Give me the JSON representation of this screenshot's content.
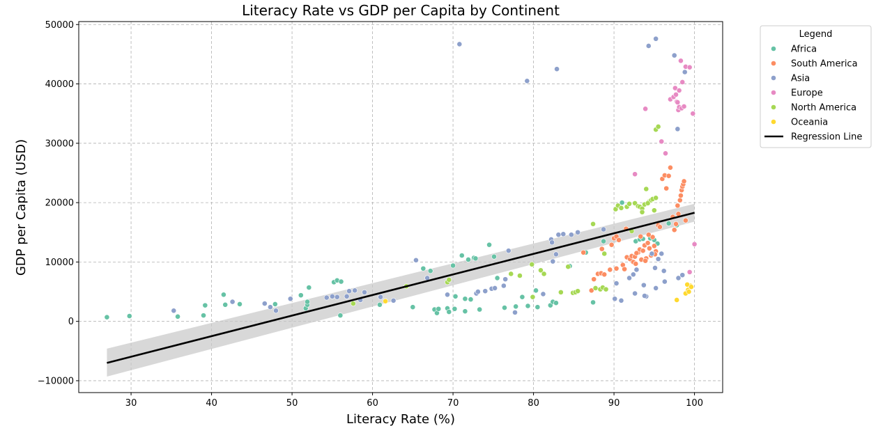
{
  "chart_data": {
    "type": "scatter",
    "title": "Literacy Rate vs GDP per Capita by Continent",
    "xlabel": "Literacy Rate (%)",
    "ylabel": "GDP per Capita (USD)",
    "xlim": [
      23.5,
      103.5
    ],
    "ylim": [
      -12000,
      50500
    ],
    "xticks": [
      30,
      40,
      50,
      60,
      70,
      80,
      90,
      100
    ],
    "yticks": [
      -10000,
      0,
      10000,
      20000,
      30000,
      40000,
      50000
    ],
    "grid": true,
    "legend": {
      "title": "Legend",
      "placement": "outside-right-top",
      "regression_label": "Regression Line"
    },
    "regression": {
      "x": [
        27,
        100
      ],
      "y": [
        -7000,
        18300
      ],
      "ci_lower": [
        -9300,
        16800
      ],
      "ci_upper": [
        -4600,
        19800
      ],
      "color": "#000000"
    },
    "series": [
      {
        "name": "Africa",
        "color": "#66c2a5",
        "points": [
          [
            27,
            700
          ],
          [
            29.8,
            900
          ],
          [
            35.8,
            800
          ],
          [
            39,
            1000
          ],
          [
            39.2,
            2700
          ],
          [
            41.5,
            4500
          ],
          [
            41.7,
            2800
          ],
          [
            43.5,
            2900
          ],
          [
            47.9,
            2900
          ],
          [
            51.1,
            4400
          ],
          [
            51.7,
            2200
          ],
          [
            51.9,
            2800
          ],
          [
            51.9,
            3300
          ],
          [
            52.1,
            5700
          ],
          [
            55.2,
            6600
          ],
          [
            55.6,
            6900
          ],
          [
            56,
            1000
          ],
          [
            56.1,
            6700
          ],
          [
            60.9,
            2800
          ],
          [
            65,
            2400
          ],
          [
            66.3,
            8900
          ],
          [
            67.2,
            8500
          ],
          [
            67.7,
            2000
          ],
          [
            68,
            1400
          ],
          [
            68.2,
            2100
          ],
          [
            69.3,
            2200
          ],
          [
            69.5,
            1600
          ],
          [
            70,
            9400
          ],
          [
            70.2,
            2100
          ],
          [
            70.3,
            4200
          ],
          [
            71.1,
            11100
          ],
          [
            71.5,
            1700
          ],
          [
            71.5,
            3800
          ],
          [
            71.9,
            10400
          ],
          [
            72.2,
            3700
          ],
          [
            72.6,
            10700
          ],
          [
            72.8,
            10600
          ],
          [
            73.3,
            2000
          ],
          [
            74.5,
            12900
          ],
          [
            75.1,
            10900
          ],
          [
            75.5,
            7300
          ],
          [
            76.4,
            2300
          ],
          [
            77.8,
            2500
          ],
          [
            78.6,
            4100
          ],
          [
            79.3,
            2600
          ],
          [
            80.3,
            5200
          ],
          [
            80.5,
            2400
          ],
          [
            82.1,
            2700
          ],
          [
            82.4,
            3300
          ],
          [
            82.8,
            3100
          ],
          [
            84.5,
            9300
          ],
          [
            86.5,
            11600
          ],
          [
            87.4,
            3200
          ],
          [
            88.7,
            13500
          ],
          [
            91,
            20000
          ],
          [
            92.7,
            13500
          ],
          [
            93.2,
            13800
          ],
          [
            93.6,
            13900
          ],
          [
            94.5,
            14000
          ],
          [
            95,
            13700
          ],
          [
            95.4,
            13100
          ],
          [
            96.8,
            16500
          ],
          [
            97.8,
            16200
          ]
        ]
      },
      {
        "name": "South America",
        "color": "#fc8d62",
        "points": [
          [
            86.2,
            11600
          ],
          [
            87.2,
            5200
          ],
          [
            87.5,
            7100
          ],
          [
            88,
            8000
          ],
          [
            88.4,
            8100
          ],
          [
            88.5,
            12200
          ],
          [
            88.8,
            7900
          ],
          [
            89.5,
            8700
          ],
          [
            89.7,
            12900
          ],
          [
            90,
            14000
          ],
          [
            90.3,
            14300
          ],
          [
            90.3,
            8900
          ],
          [
            90.6,
            13700
          ],
          [
            91.1,
            9500
          ],
          [
            91.3,
            8800
          ],
          [
            91.5,
            15600
          ],
          [
            91.6,
            10800
          ],
          [
            92,
            10500
          ],
          [
            92.2,
            11000
          ],
          [
            92.4,
            10000
          ],
          [
            92.6,
            10900
          ],
          [
            92.7,
            9700
          ],
          [
            93,
            11600
          ],
          [
            93.2,
            12100
          ],
          [
            93.4,
            10400
          ],
          [
            93.6,
            11900
          ],
          [
            93.8,
            12800
          ],
          [
            94,
            10600
          ],
          [
            94.2,
            13200
          ],
          [
            94.4,
            12300
          ],
          [
            94.6,
            11100
          ],
          [
            94.8,
            14200
          ],
          [
            95,
            12700
          ],
          [
            95.2,
            11800
          ],
          [
            95.5,
            16200
          ],
          [
            95.7,
            15900
          ],
          [
            96,
            24000
          ],
          [
            96.3,
            24600
          ],
          [
            96.5,
            22400
          ],
          [
            96.8,
            24500
          ],
          [
            97,
            25900
          ],
          [
            97.3,
            17600
          ],
          [
            97.5,
            15400
          ],
          [
            97.7,
            16400
          ],
          [
            97.9,
            19500
          ],
          [
            98,
            18100
          ],
          [
            98.2,
            20400
          ],
          [
            98.3,
            21200
          ],
          [
            98.4,
            22100
          ],
          [
            98.5,
            22700
          ],
          [
            98.6,
            23100
          ],
          [
            98.7,
            23600
          ],
          [
            98.9,
            17000
          ],
          [
            92.8,
            11500
          ],
          [
            93.9,
            10200
          ],
          [
            94.3,
            14600
          ],
          [
            95.1,
            11300
          ],
          [
            93.3,
            14300
          ]
        ]
      },
      {
        "name": "Asia",
        "color": "#8da0cb",
        "points": [
          [
            35.3,
            1800
          ],
          [
            42.6,
            3300
          ],
          [
            46.6,
            3000
          ],
          [
            47.3,
            2400
          ],
          [
            48,
            1800
          ],
          [
            49.8,
            3800
          ],
          [
            54.3,
            4000
          ],
          [
            55,
            4200
          ],
          [
            55.6,
            4100
          ],
          [
            56.8,
            4200
          ],
          [
            57.1,
            5100
          ],
          [
            57.8,
            5200
          ],
          [
            58.5,
            3600
          ],
          [
            59,
            4900
          ],
          [
            61,
            4100
          ],
          [
            62.6,
            3500
          ],
          [
            65.4,
            10300
          ],
          [
            66.8,
            7300
          ],
          [
            69.3,
            4500
          ],
          [
            70.8,
            46700
          ],
          [
            72.9,
            4700
          ],
          [
            73.1,
            5000
          ],
          [
            74,
            5100
          ],
          [
            74.8,
            5500
          ],
          [
            75.2,
            5600
          ],
          [
            76.3,
            6000
          ],
          [
            76.5,
            7100
          ],
          [
            76.9,
            11900
          ],
          [
            77.7,
            1500
          ],
          [
            79.2,
            40500
          ],
          [
            81.2,
            4600
          ],
          [
            82.2,
            13800
          ],
          [
            82.3,
            13300
          ],
          [
            82.4,
            10100
          ],
          [
            82.8,
            11300
          ],
          [
            82.9,
            42500
          ],
          [
            83.1,
            14600
          ],
          [
            83.7,
            14700
          ],
          [
            84.7,
            14600
          ],
          [
            85.5,
            15000
          ],
          [
            88.7,
            15500
          ],
          [
            90.1,
            3800
          ],
          [
            90.3,
            6400
          ],
          [
            90.9,
            3500
          ],
          [
            91.9,
            7300
          ],
          [
            92.4,
            7900
          ],
          [
            92.6,
            4700
          ],
          [
            92.8,
            8700
          ],
          [
            93.7,
            6100
          ],
          [
            94,
            4200
          ],
          [
            94.3,
            46400
          ],
          [
            94.7,
            11400
          ],
          [
            95.2,
            47600
          ],
          [
            95.2,
            5600
          ],
          [
            95.5,
            10500
          ],
          [
            95.9,
            11400
          ],
          [
            96.3,
            6700
          ],
          [
            97.5,
            44800
          ],
          [
            97.9,
            32400
          ],
          [
            98,
            7300
          ],
          [
            98.5,
            7800
          ],
          [
            98.8,
            42000
          ],
          [
            93.8,
            4300
          ],
          [
            95.1,
            9000
          ],
          [
            96.2,
            8500
          ]
        ]
      },
      {
        "name": "Europe",
        "color": "#e78ac3",
        "points": [
          [
            92.6,
            24800
          ],
          [
            93.9,
            35800
          ],
          [
            95.9,
            30300
          ],
          [
            96.4,
            28300
          ],
          [
            97,
            37400
          ],
          [
            97.4,
            37800
          ],
          [
            97.6,
            39300
          ],
          [
            97.7,
            38200
          ],
          [
            97.8,
            37000
          ],
          [
            97.9,
            36900
          ],
          [
            98,
            35600
          ],
          [
            98.1,
            38900
          ],
          [
            98.1,
            36100
          ],
          [
            98.3,
            43900
          ],
          [
            98.4,
            35900
          ],
          [
            98.5,
            40300
          ],
          [
            98.7,
            36200
          ],
          [
            98.9,
            42900
          ],
          [
            99.4,
            42800
          ],
          [
            99.4,
            8300
          ],
          [
            99.8,
            35000
          ],
          [
            100,
            13000
          ]
        ]
      },
      {
        "name": "North America",
        "color": "#a6d854",
        "points": [
          [
            57.6,
            3000
          ],
          [
            64.2,
            5900
          ],
          [
            69.3,
            6600
          ],
          [
            69.5,
            7000
          ],
          [
            77.2,
            8000
          ],
          [
            78.3,
            7700
          ],
          [
            79.8,
            9600
          ],
          [
            79.9,
            4100
          ],
          [
            80.9,
            8600
          ],
          [
            81.3,
            8000
          ],
          [
            83.4,
            4900
          ],
          [
            84.3,
            9200
          ],
          [
            84.9,
            4800
          ],
          [
            85.2,
            4900
          ],
          [
            85.5,
            5100
          ],
          [
            87.4,
            16400
          ],
          [
            87.7,
            5600
          ],
          [
            88.3,
            5400
          ],
          [
            88.6,
            5700
          ],
          [
            88.8,
            11400
          ],
          [
            89,
            5400
          ],
          [
            90.2,
            18900
          ],
          [
            90.5,
            19500
          ],
          [
            90.9,
            19100
          ],
          [
            91.6,
            19300
          ],
          [
            91.9,
            19800
          ],
          [
            92.2,
            15200
          ],
          [
            92.6,
            19900
          ],
          [
            93,
            19400
          ],
          [
            93.2,
            19300
          ],
          [
            93.5,
            19000
          ],
          [
            93.8,
            19700
          ],
          [
            94,
            22300
          ],
          [
            94.3,
            20100
          ],
          [
            94.6,
            20400
          ],
          [
            94.8,
            20600
          ],
          [
            95,
            18700
          ],
          [
            95.2,
            20800
          ],
          [
            95.2,
            32300
          ],
          [
            95.5,
            32800
          ],
          [
            93.5,
            18400
          ],
          [
            94.2,
            19900
          ]
        ]
      },
      {
        "name": "Oceania",
        "color": "#ffd92f",
        "points": [
          [
            61.6,
            3400
          ],
          [
            97.8,
            3600
          ],
          [
            98.9,
            4700
          ],
          [
            99.2,
            5300
          ],
          [
            99.5,
            6000
          ],
          [
            99.1,
            6200
          ],
          [
            99.6,
            5800
          ],
          [
            99.3,
            5000
          ]
        ]
      }
    ]
  }
}
